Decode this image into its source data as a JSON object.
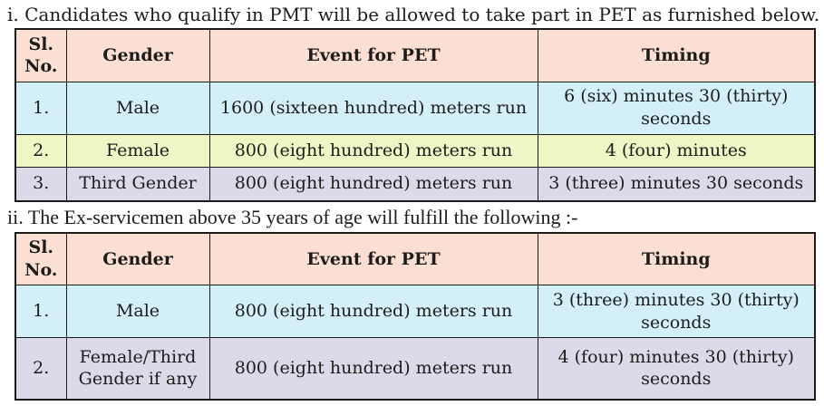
{
  "colors": {
    "header_bg": "#FBDFD2",
    "row_cyan": "#D3F0F8",
    "row_yellow": "#F0F5C5",
    "row_lavender": "#DADAE9",
    "border": "#1a1a1a",
    "text": "#1c1c1c"
  },
  "sections": [
    {
      "heading": "i. Candidates who qualify in PMT will be allowed to take part in PET as furnished below.",
      "table": {
        "headers": [
          "Sl. No.",
          "Gender",
          "Event for PET",
          "Timing"
        ],
        "rows": [
          {
            "sl": "1.",
            "gender": "Male",
            "event": "1600 (sixteen hundred) meters run",
            "timing": "6 (six) minutes 30 (thirty) seconds"
          },
          {
            "sl": "2.",
            "gender": "Female",
            "event": "800 (eight hundred) meters run",
            "timing": "4 (four) minutes"
          },
          {
            "sl": "3.",
            "gender": "Third Gender",
            "event": "800 (eight hundred) meters run",
            "timing": "3 (three) minutes 30 seconds"
          }
        ]
      }
    },
    {
      "heading": "ii. The Ex-servicemen above 35 years of age will fulfill the following :-",
      "table": {
        "headers": [
          "Sl. No.",
          "Gender",
          "Event for PET",
          "Timing"
        ],
        "rows": [
          {
            "sl": "1.",
            "gender": "Male",
            "event": "800 (eight hundred) meters run",
            "timing": "3 (three) minutes 30 (thirty) seconds"
          },
          {
            "sl": "2.",
            "gender": "Female/Third Gender if any",
            "event": "800 (eight hundred) meters run",
            "timing": "4 (four) minutes 30 (thirty) seconds"
          }
        ]
      }
    }
  ]
}
